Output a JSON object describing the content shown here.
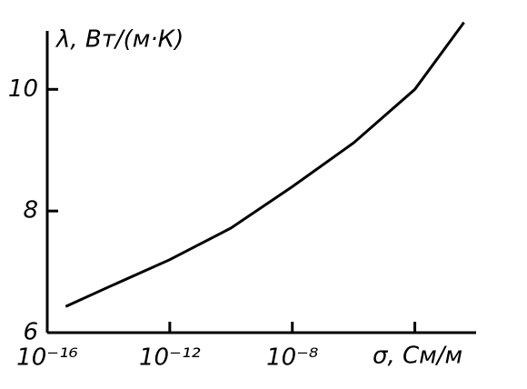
{
  "chart_data": {
    "type": "line",
    "ylabel": "λ, Вт/(м·К)",
    "xlabel": "σ, См/м",
    "x": [
      4e-16,
      1e-14,
      1e-12,
      1e-10,
      1e-08,
      1e-06,
      0.0001,
      0.004
    ],
    "series": [
      {
        "color": "#000000",
        "values": [
          6.43,
          6.75,
          7.2,
          7.72,
          8.4,
          9.12,
          10.0,
          11.1
        ]
      }
    ],
    "xscale": "log",
    "xlim": [
      1e-16,
      0.01
    ],
    "xticks": [
      {
        "value": 1e-16,
        "label": "10⁻¹⁶"
      },
      {
        "value": 1e-12,
        "label": "10⁻¹²"
      },
      {
        "value": 1e-08,
        "label": "10⁻⁸"
      },
      {
        "value": 0.0001,
        "label": null
      }
    ],
    "ylim": [
      6,
      11.2
    ],
    "yticks": [
      6,
      8,
      10
    ],
    "grid": false
  }
}
